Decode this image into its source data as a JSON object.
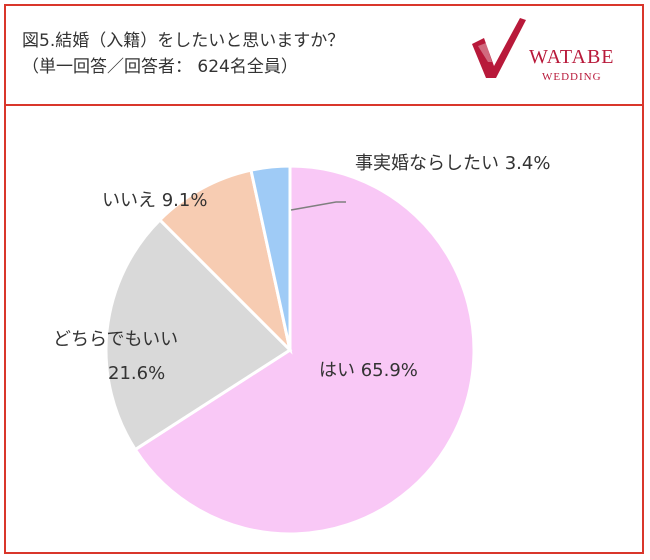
{
  "header": {
    "title_line1": "図5.結婚（入籍）をしたいと思いますか？",
    "title_line2": "（単一回答／回答者： 624名全員）",
    "logo_text1": "WATABE",
    "logo_text2": "WEDDING"
  },
  "colors": {
    "border": "#d9362b",
    "brand": "#b8193a"
  },
  "chart_data": {
    "type": "pie",
    "slices": [
      {
        "name": "はい",
        "value": 65.9,
        "color": "#f9c8f6",
        "label": "はい 65.9%"
      },
      {
        "name": "どちらでもいい",
        "value": 21.6,
        "color": "#d9d9d9",
        "label1": "どちらでもいい",
        "label2": "21.6%"
      },
      {
        "name": "いいえ",
        "value": 9.1,
        "color": "#f7ccb2",
        "label": "いいえ 9.1%"
      },
      {
        "name": "事実婚ならしたい",
        "value": 3.4,
        "color": "#9fcbf6",
        "label": "事実婚ならしたい 3.4%"
      }
    ],
    "start_angle_deg": 0,
    "direction": "clockwise"
  }
}
